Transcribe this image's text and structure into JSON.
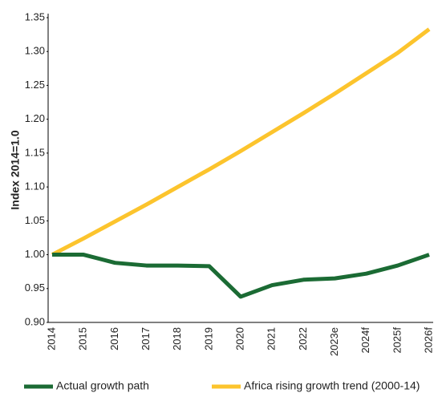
{
  "chart_data": {
    "type": "line",
    "y_label": "Index 2014=1.0",
    "categories": [
      "2014",
      "2015",
      "2016",
      "2017",
      "2018",
      "2019",
      "2020",
      "2021",
      "2022",
      "2023e",
      "2024f",
      "2025f",
      "2026f"
    ],
    "series": [
      {
        "name": "Actual growth path",
        "color": "#1b6b34",
        "values": [
          1.0,
          1.0,
          0.988,
          0.984,
          0.984,
          0.983,
          0.938,
          0.955,
          0.963,
          0.965,
          0.972,
          0.984,
          1.0
        ]
      },
      {
        "name": "Africa rising growth trend (2000-14)",
        "color": "#fcc42d",
        "values": [
          1.0,
          1.024,
          1.049,
          1.074,
          1.1,
          1.126,
          1.153,
          1.181,
          1.209,
          1.238,
          1.268,
          1.298,
          1.333
        ]
      }
    ],
    "ylim": [
      0.9,
      1.35
    ],
    "yticks": [
      {
        "value": 0.9,
        "label": "0.90"
      },
      0.95,
      {
        "value": 1.0,
        "label": "1.00"
      },
      1.05,
      {
        "value": 1.1,
        "label": "1.10"
      },
      1.15,
      {
        "value": 1.2,
        "label": "1.20"
      },
      1.25,
      {
        "value": 1.3,
        "label": "1.30"
      },
      1.35
    ],
    "grid": false
  }
}
